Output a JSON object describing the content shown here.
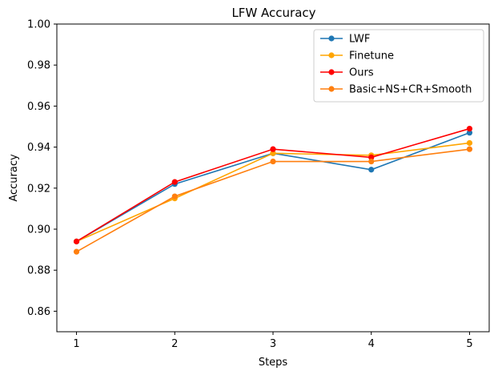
{
  "chart_data": {
    "type": "line",
    "title": "LFW Accuracy",
    "xlabel": "Steps",
    "ylabel": "Accuracy",
    "x": [
      1,
      2,
      3,
      4,
      5
    ],
    "xticks": [
      "1",
      "2",
      "3",
      "4",
      "5"
    ],
    "xlim": [
      0.8,
      5.2
    ],
    "ylim": [
      0.85,
      1.0
    ],
    "yticks": [
      "0.86",
      "0.88",
      "0.90",
      "0.92",
      "0.94",
      "0.96",
      "0.98",
      "1.00"
    ],
    "grid": false,
    "legend_position": "top-right",
    "series": [
      {
        "name": "LWF",
        "color": "#1f77b4",
        "values": [
          0.894,
          0.922,
          0.937,
          0.929,
          0.947
        ]
      },
      {
        "name": "Finetune",
        "color": "#ffa500",
        "values": [
          0.894,
          0.915,
          0.937,
          0.936,
          0.942
        ]
      },
      {
        "name": "Ours",
        "color": "#ff0000",
        "values": [
          0.894,
          0.923,
          0.939,
          0.935,
          0.949
        ]
      },
      {
        "name": "Basic+NS+CR+Smooth",
        "color": "#ff7f0e",
        "values": [
          0.889,
          0.916,
          0.933,
          0.933,
          0.939
        ]
      }
    ]
  }
}
